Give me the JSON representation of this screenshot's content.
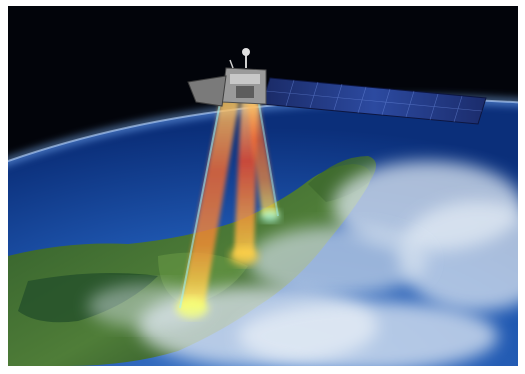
{
  "scene": {
    "colors": {
      "space": "#02040a",
      "ocean_deep": "#0b2f7a",
      "ocean_light": "#3f78c8",
      "atmosphere": "#7fb6ff",
      "land_dark": "#163c1c",
      "land_light": "#5f8f3e",
      "cloud": "#dfe8f2",
      "solar_panel": "#22357d",
      "satellite_body": "#8a8a8a",
      "beam_orange": "#ff8a2a",
      "beam_red": "#ff3b1f",
      "beam_yellow": "#fff15a",
      "beam_cyan": "#9ef6ff"
    },
    "elements": [
      "space-background",
      "earth-globe",
      "landmass",
      "cloud-cover",
      "satellite",
      "sensor-beams"
    ]
  }
}
